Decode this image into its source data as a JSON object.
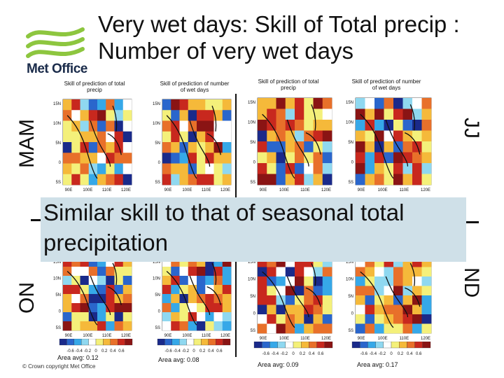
{
  "title": "Very wet days: Skill of Total precip : Number of very wet days",
  "logo_text": "Met Office",
  "season_labels": {
    "left_top": "MAM",
    "right_top": "JJ",
    "left_bottom": "ON",
    "right_bottom": "ND"
  },
  "panel_titles": {
    "total": "Skill of prediction of total precip",
    "wet_days": "Skill of prediction of number of wet days"
  },
  "map_axes": {
    "lat_ticks": [
      "15N",
      "10N",
      "5N",
      "0",
      "5S"
    ],
    "lon_ticks": [
      "90E",
      "100E",
      "110E",
      "120E"
    ]
  },
  "colorbar_ticks": [
    "-0.6",
    "-0.4",
    "-0.2",
    "0",
    "0.2",
    "0.4",
    "0.6"
  ],
  "area_avgs": [
    "Area avg: 0.12",
    "Area avg: 0.08",
    "Area avg: 0.09",
    "Area avg: 0.17"
  ],
  "overlay_text": "Similar skill to that of seasonal total precipitation",
  "copyright": "© Crown copyright   Met Office",
  "colors": {
    "logo_green": "#8dc63f",
    "overlay_bg": "#cfe0e8",
    "palette": [
      "#1a2a8a",
      "#2a66cc",
      "#36a8e8",
      "#8fd8f0",
      "#ffffff",
      "#f4f07a",
      "#f5b93a",
      "#e8702a",
      "#c8281e",
      "#8a1414"
    ]
  }
}
